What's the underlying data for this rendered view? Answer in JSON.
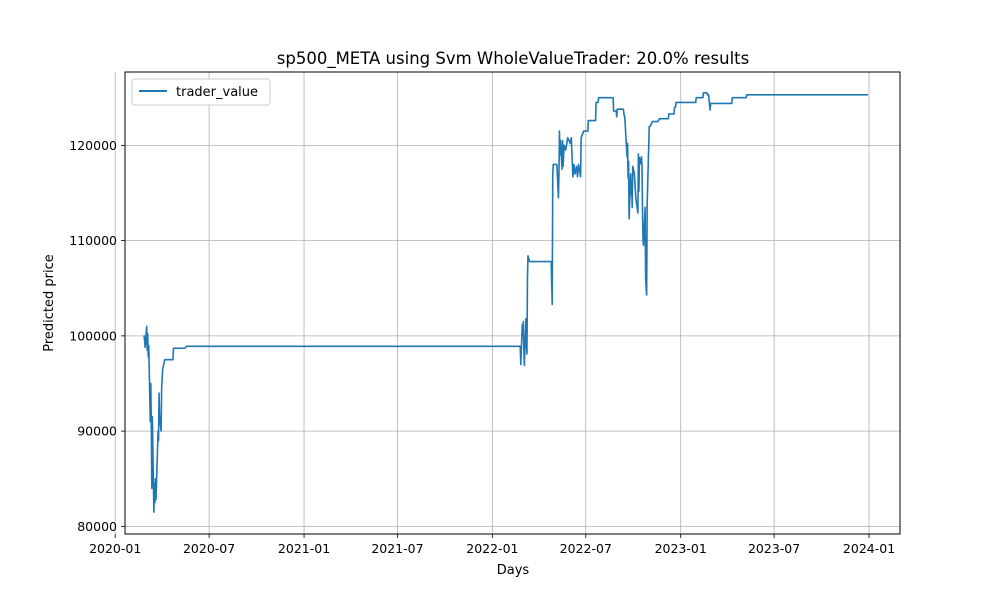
{
  "chart_data": {
    "type": "line",
    "title": "sp500_META using Svm WholeValueTrader: 20.0% results",
    "xlabel": "Days",
    "ylabel": "Predicted price",
    "xlim": [
      "2020-01-20",
      "2024-03-01"
    ],
    "ylim": [
      79200,
      127700
    ],
    "x_ticks": [
      "2020-01",
      "2020-07",
      "2021-01",
      "2021-07",
      "2022-01",
      "2022-07",
      "2023-01",
      "2023-07",
      "2024-01"
    ],
    "y_ticks": [
      80000,
      90000,
      100000,
      110000,
      120000
    ],
    "grid": true,
    "legend": "top-left",
    "series": [
      {
        "name": "trader_value",
        "color": "#1f77b4",
        "points": [
          [
            "2020-02-26",
            100000
          ],
          [
            "2020-02-27",
            99500
          ],
          [
            "2020-02-28",
            98800
          ],
          [
            "2020-03-02",
            101000
          ],
          [
            "2020-03-03",
            98500
          ],
          [
            "2020-03-04",
            100200
          ],
          [
            "2020-03-05",
            97800
          ],
          [
            "2020-03-06",
            99000
          ],
          [
            "2020-03-09",
            91000
          ],
          [
            "2020-03-10",
            95000
          ],
          [
            "2020-03-11",
            90500
          ],
          [
            "2020-03-12",
            84000
          ],
          [
            "2020-03-13",
            91500
          ],
          [
            "2020-03-16",
            81500
          ],
          [
            "2020-03-17",
            84500
          ],
          [
            "2020-03-18",
            82500
          ],
          [
            "2020-03-19",
            85000
          ],
          [
            "2020-03-20",
            82800
          ],
          [
            "2020-03-23",
            88000
          ],
          [
            "2020-03-24",
            90000
          ],
          [
            "2020-03-25",
            89000
          ],
          [
            "2020-03-26",
            94000
          ],
          [
            "2020-03-27",
            91500
          ],
          [
            "2020-03-30",
            90000
          ],
          [
            "2020-03-31",
            94500
          ],
          [
            "2020-04-02",
            96500
          ],
          [
            "2020-04-06",
            97500
          ],
          [
            "2020-04-22",
            97500
          ],
          [
            "2020-04-23",
            98700
          ],
          [
            "2020-05-15",
            98700
          ],
          [
            "2020-05-18",
            98900
          ],
          [
            "2022-02-24",
            98900
          ],
          [
            "2022-02-25",
            97000
          ],
          [
            "2022-02-28",
            101200
          ],
          [
            "2022-03-01",
            100000
          ],
          [
            "2022-03-02",
            101500
          ],
          [
            "2022-03-03",
            98500
          ],
          [
            "2022-03-04",
            96900
          ],
          [
            "2022-03-07",
            101800
          ],
          [
            "2022-03-08",
            99000
          ],
          [
            "2022-03-09",
            98100
          ],
          [
            "2022-03-10",
            106000
          ],
          [
            "2022-03-11",
            108400
          ],
          [
            "2022-03-14",
            107800
          ],
          [
            "2022-04-25",
            107800
          ],
          [
            "2022-04-26",
            105500
          ],
          [
            "2022-04-27",
            103300
          ],
          [
            "2022-04-28",
            117000
          ],
          [
            "2022-04-29",
            118000
          ],
          [
            "2022-05-06",
            118000
          ],
          [
            "2022-05-09",
            114500
          ],
          [
            "2022-05-10",
            117000
          ],
          [
            "2022-05-11",
            121500
          ],
          [
            "2022-05-12",
            119000
          ],
          [
            "2022-05-13",
            120500
          ],
          [
            "2022-05-16",
            117500
          ],
          [
            "2022-05-17",
            120500
          ],
          [
            "2022-05-18",
            117800
          ],
          [
            "2022-05-20",
            120000
          ],
          [
            "2022-05-23",
            119500
          ],
          [
            "2022-05-27",
            120800
          ],
          [
            "2022-06-01",
            120200
          ],
          [
            "2022-06-03",
            120800
          ],
          [
            "2022-06-06",
            116700
          ],
          [
            "2022-06-08",
            118000
          ],
          [
            "2022-06-10",
            117000
          ],
          [
            "2022-06-13",
            117800
          ],
          [
            "2022-06-15",
            116700
          ],
          [
            "2022-06-17",
            118000
          ],
          [
            "2022-06-21",
            116700
          ],
          [
            "2022-06-22",
            120800
          ],
          [
            "2022-06-27",
            121500
          ],
          [
            "2022-07-05",
            121500
          ],
          [
            "2022-07-06",
            122600
          ],
          [
            "2022-07-20",
            122600
          ],
          [
            "2022-07-21",
            124500
          ],
          [
            "2022-07-25",
            124500
          ],
          [
            "2022-07-26",
            125000
          ],
          [
            "2022-08-23",
            125000
          ],
          [
            "2022-08-24",
            123600
          ],
          [
            "2022-08-29",
            123600
          ],
          [
            "2022-08-30",
            123000
          ],
          [
            "2022-08-31",
            123800
          ],
          [
            "2022-09-12",
            123800
          ],
          [
            "2022-09-13",
            123200
          ],
          [
            "2022-09-14",
            123200
          ],
          [
            "2022-09-15",
            122600
          ],
          [
            "2022-09-19",
            118800
          ],
          [
            "2022-09-20",
            120200
          ],
          [
            "2022-09-21",
            116600
          ],
          [
            "2022-09-22",
            118300
          ],
          [
            "2022-09-23",
            112300
          ],
          [
            "2022-09-26",
            117000
          ],
          [
            "2022-09-27",
            114800
          ],
          [
            "2022-09-28",
            116200
          ],
          [
            "2022-09-29",
            113500
          ],
          [
            "2022-09-30",
            117800
          ],
          [
            "2022-10-03",
            117100
          ],
          [
            "2022-10-06",
            114500
          ],
          [
            "2022-10-10",
            112900
          ],
          [
            "2022-10-11",
            119100
          ],
          [
            "2022-10-12",
            115200
          ],
          [
            "2022-10-13",
            118700
          ],
          [
            "2022-10-14",
            118000
          ],
          [
            "2022-10-17",
            118800
          ],
          [
            "2022-10-18",
            117800
          ],
          [
            "2022-10-19",
            113000
          ],
          [
            "2022-10-20",
            110000
          ],
          [
            "2022-10-21",
            109500
          ],
          [
            "2022-10-24",
            113500
          ],
          [
            "2022-10-25",
            106000
          ],
          [
            "2022-10-26",
            105000
          ],
          [
            "2022-10-27",
            104300
          ],
          [
            "2022-10-28",
            113800
          ],
          [
            "2022-10-31",
            120000
          ],
          [
            "2022-11-01",
            122000
          ],
          [
            "2022-11-03",
            122000
          ],
          [
            "2022-11-07",
            122500
          ],
          [
            "2022-11-18",
            122500
          ],
          [
            "2022-11-21",
            122800
          ],
          [
            "2022-12-08",
            122800
          ],
          [
            "2022-12-09",
            123300
          ],
          [
            "2022-12-19",
            123300
          ],
          [
            "2022-12-20",
            124000
          ],
          [
            "2022-12-22",
            124000
          ],
          [
            "2022-12-23",
            124500
          ],
          [
            "2023-01-30",
            124500
          ],
          [
            "2023-01-31",
            125000
          ],
          [
            "2023-02-13",
            125000
          ],
          [
            "2023-02-14",
            125500
          ],
          [
            "2023-02-21",
            125500
          ],
          [
            "2023-02-22",
            125300
          ],
          [
            "2023-02-24",
            125300
          ],
          [
            "2023-02-27",
            123700
          ],
          [
            "2023-02-28",
            124400
          ],
          [
            "2023-04-10",
            124400
          ],
          [
            "2023-04-11",
            125000
          ],
          [
            "2023-05-08",
            125000
          ],
          [
            "2023-05-09",
            125300
          ],
          [
            "2023-12-29",
            125300
          ]
        ]
      }
    ]
  }
}
